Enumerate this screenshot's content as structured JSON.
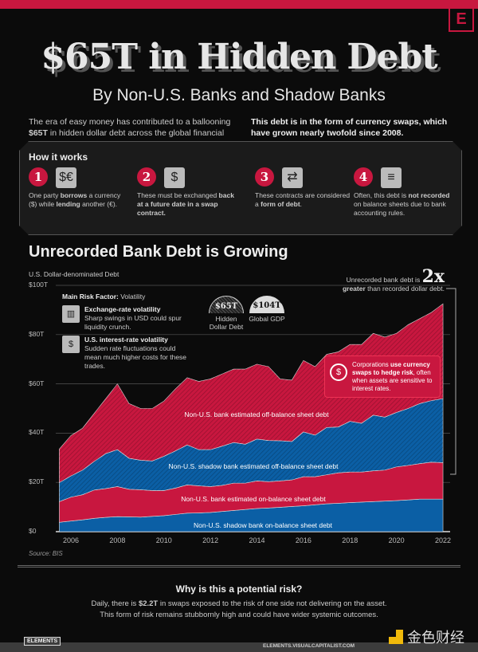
{
  "header": {
    "logo_letter": "E",
    "title": "$65T in Hidden Debt",
    "subtitle": "By Non-U.S. Banks and Shadow Banks",
    "intro_left_pre": "The era of easy money has contributed to a ballooning ",
    "intro_left_bold": "$65T",
    "intro_left_post": " in hidden dollar debt across the global financial system.",
    "intro_right": "This debt is in the form of currency swaps, which have grown nearly twofold since 2008."
  },
  "how_it_works": {
    "title": "How it works",
    "steps": [
      {
        "num": "1",
        "icon": "currency-exchange-icon",
        "glyph": "$€",
        "parts": [
          "One party ",
          "borrows",
          " a currency ($) while ",
          "lending",
          " another (€)."
        ]
      },
      {
        "num": "2",
        "icon": "handshake-money-icon",
        "glyph": "$",
        "parts": [
          "These must be exchanged ",
          "back",
          "",
          " at a future date in a swap contract.",
          ""
        ]
      },
      {
        "num": "3",
        "icon": "contract-document-icon",
        "glyph": "⇄",
        "parts": [
          "These contracts are considered a ",
          "form of debt",
          ".",
          "",
          ""
        ]
      },
      {
        "num": "4",
        "icon": "unrecorded-document-icon",
        "glyph": "≡",
        "parts": [
          "Often, this debt is ",
          "not recorded",
          " on balance sheets due to bank accounting rules.",
          "",
          ""
        ]
      }
    ]
  },
  "chart_section": {
    "title": "Unrecorded Bank Debt is Growing",
    "source": "Source: BIS",
    "risk": {
      "heading_bold": "Main Risk Factor:",
      "heading_rest": " Volatility",
      "items": [
        {
          "icon": "chart-up-icon",
          "glyph": "📈",
          "title": "Exchange-rate volatility",
          "text": "Sharp swings in USD could spur liquidity crunch."
        },
        {
          "icon": "dollar-up-icon",
          "glyph": "↑$",
          "title": "U.S. interest-rate volatility",
          "text": "Sudden rate fluctuations could mean much higher costs for these trades."
        }
      ]
    },
    "comparison": [
      {
        "value": "$65T",
        "label": "Hidden Dollar Debt"
      },
      {
        "value": "$104T",
        "label": "Global GDP"
      }
    ],
    "twox": {
      "pre": "Unrecorded bank debt is ",
      "big": "2x",
      "bold": "greater",
      "post": " than recorded dollar debt."
    },
    "corp": {
      "pre": "Corporations ",
      "bold": "use currency swaps to hedge risk",
      "post": ", often when assets are sensitive to interest rates."
    }
  },
  "chart_data": {
    "type": "area",
    "stacked": true,
    "ylabel": "U.S. Dollar-denominated Debt",
    "ylim": [
      0,
      100
    ],
    "yticks": [
      "$0",
      "$20T",
      "$40T",
      "$60T",
      "$80T",
      "$100T"
    ],
    "ytick_values": [
      0,
      20,
      40,
      60,
      80,
      100
    ],
    "xticks": [
      "2006",
      "2008",
      "2010",
      "2012",
      "2014",
      "2016",
      "2018",
      "2020",
      "2022"
    ],
    "xtick_values": [
      2006,
      2008,
      2010,
      2012,
      2014,
      2016,
      2018,
      2020,
      2022
    ],
    "x": [
      2005.5,
      2006,
      2006.5,
      2007,
      2007.5,
      2008,
      2008.5,
      2009,
      2009.5,
      2010,
      2010.5,
      2011,
      2011.5,
      2012,
      2012.5,
      2013,
      2013.5,
      2014,
      2014.5,
      2015,
      2015.5,
      2016,
      2016.5,
      2017,
      2017.5,
      2018,
      2018.5,
      2019,
      2019.5,
      2020,
      2020.5,
      2021,
      2021.5,
      2022
    ],
    "series": [
      {
        "name": "Non-U.S. shadow bank on-balance sheet debt",
        "color": "#0b5fa5",
        "values": [
          3.8,
          4.3,
          4.8,
          5.4,
          5.8,
          6.1,
          6.0,
          5.9,
          6.2,
          6.5,
          7.0,
          7.5,
          7.6,
          7.8,
          8.2,
          8.6,
          9.0,
          9.4,
          9.6,
          9.9,
          10.2,
          10.5,
          10.9,
          11.3,
          11.5,
          11.8,
          12.0,
          12.2,
          12.4,
          12.6,
          12.9,
          13.2,
          13.2,
          13.2
        ]
      },
      {
        "name": "Non-U.S. bank estimated on-balance sheet debt",
        "color": "#c8173f",
        "values": [
          8.4,
          9.7,
          10.2,
          11.5,
          11.7,
          12.2,
          11.2,
          11.1,
          10.5,
          10.2,
          10.7,
          11.5,
          11.0,
          10.5,
          10.6,
          11.1,
          10.7,
          11.2,
          10.7,
          10.7,
          10.8,
          11.8,
          11.4,
          11.8,
          12.4,
          12.4,
          12.2,
          12.5,
          12.6,
          13.7,
          14.0,
          14.4,
          15.0,
          14.8
        ]
      },
      {
        "name": "Non-U.S. shadow bank estimated off-balance sheet debt",
        "color": "#0b5fa5",
        "hatched": true,
        "values": [
          7.7,
          8.6,
          10.0,
          11.6,
          14.2,
          15.0,
          12.6,
          12.0,
          12.0,
          13.9,
          15.1,
          16.2,
          14.7,
          15.0,
          15.9,
          16.5,
          15.8,
          17.0,
          16.7,
          16.3,
          15.6,
          18.2,
          16.9,
          19.2,
          18.6,
          20.6,
          19.8,
          22.6,
          21.5,
          22.1,
          23.1,
          24.4,
          25.0,
          26.0
        ]
      },
      {
        "name": "Non-U.S. bank estimated off-balance sheet debt",
        "color": "#c8173f",
        "hatched": true,
        "values": [
          13.6,
          16.4,
          17.0,
          19.5,
          22.3,
          26.7,
          22.2,
          21.0,
          21.3,
          22.4,
          25.2,
          27.3,
          27.7,
          28.7,
          29.3,
          29.8,
          30.5,
          30.4,
          30.0,
          25.1,
          24.9,
          29.0,
          27.8,
          29.7,
          30.5,
          31.2,
          32.0,
          33.2,
          32.5,
          32.1,
          34.0,
          34.5,
          35.8,
          38.5
        ]
      }
    ],
    "grid": true
  },
  "risk_section": {
    "title": "Why is this a potential risk?",
    "line1_pre": "Daily, there is ",
    "line1_bold": "$2.2T",
    "line1_post": " in swaps exposed to the risk of one side not delivering on the asset.",
    "line2": "This form of risk remains stubbornly high and could have wider systemic outcomes."
  },
  "footer": {
    "logo": "ELEMENTS",
    "url": "ELEMENTS.VISUALCAPITALIST.COM",
    "watermark": "金色财经"
  },
  "colors": {
    "accent": "#c8173f",
    "blue": "#0b5fa5",
    "background": "#0b0b0b"
  }
}
